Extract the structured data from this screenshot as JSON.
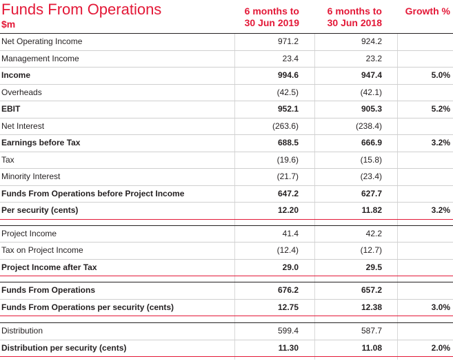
{
  "header": {
    "title": "Funds From Operations",
    "subtitle": "$m",
    "col1": [
      "6 months to",
      "30 Jun 2019"
    ],
    "col2": [
      "6 months to",
      "30 Jun 2018"
    ],
    "col3": "Growth %"
  },
  "rows": [
    {
      "label": "Net Operating Income",
      "v1": "971.2",
      "v2": "924.2",
      "v3": "",
      "bold": false,
      "style": ""
    },
    {
      "label": "Management Income",
      "v1": "23.4",
      "v2": "23.2",
      "v3": "",
      "bold": false,
      "style": ""
    },
    {
      "label": "Income",
      "v1": "994.6",
      "v2": "947.4",
      "v3": "5.0%",
      "bold": true,
      "style": ""
    },
    {
      "label": "Overheads",
      "v1": "(42.5)",
      "v2": "(42.1)",
      "v3": "",
      "bold": false,
      "style": ""
    },
    {
      "label": "EBIT",
      "v1": "952.1",
      "v2": "905.3",
      "v3": "5.2%",
      "bold": true,
      "style": ""
    },
    {
      "label": "Net Interest",
      "v1": "(263.6)",
      "v2": "(238.4)",
      "v3": "",
      "bold": false,
      "style": ""
    },
    {
      "label": "Earnings before Tax",
      "v1": "688.5",
      "v2": "666.9",
      "v3": "3.2%",
      "bold": true,
      "style": ""
    },
    {
      "label": "Tax",
      "v1": "(19.6)",
      "v2": "(15.8)",
      "v3": "",
      "bold": false,
      "style": ""
    },
    {
      "label": "Minority Interest",
      "v1": "(21.7)",
      "v2": "(23.4)",
      "v3": "",
      "bold": false,
      "style": ""
    },
    {
      "label": "Funds From Operations before Project Income",
      "v1": "647.2",
      "v2": "627.7",
      "v3": "",
      "bold": true,
      "style": ""
    },
    {
      "label": "Per security (cents)",
      "v1": "12.20",
      "v2": "11.82",
      "v3": "3.2%",
      "bold": true,
      "style": "red-line"
    },
    {
      "label": "Project Income",
      "v1": "41.4",
      "v2": "42.2",
      "v3": "",
      "bold": false,
      "style": "gap-before"
    },
    {
      "label": "Tax on Project Income",
      "v1": "(12.4)",
      "v2": "(12.7)",
      "v3": "",
      "bold": false,
      "style": ""
    },
    {
      "label": "Project Income after Tax",
      "v1": "29.0",
      "v2": "29.5",
      "v3": "",
      "bold": true,
      "style": "red-line"
    },
    {
      "label": "Funds From Operations",
      "v1": "676.2",
      "v2": "657.2",
      "v3": "",
      "bold": true,
      "style": "gap-before"
    },
    {
      "label": "Funds From Operations per security (cents)",
      "v1": "12.75",
      "v2": "12.38",
      "v3": "3.0%",
      "bold": true,
      "style": "red-line"
    },
    {
      "label": "Distribution",
      "v1": "599.4",
      "v2": "587.7",
      "v3": "",
      "bold": false,
      "style": "gap-before2"
    },
    {
      "label": "Distribution per security (cents)",
      "v1": "11.30",
      "v2": "11.08",
      "v3": "2.0%",
      "bold": true,
      "style": "red-line"
    }
  ],
  "colors": {
    "accent": "#e31837",
    "text": "#231f20"
  }
}
